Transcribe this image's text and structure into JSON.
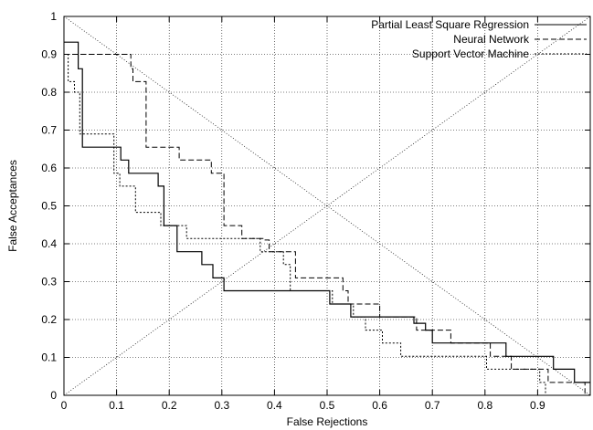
{
  "chart_data": {
    "type": "line",
    "title": "",
    "xlabel": "False Rejections",
    "ylabel": "False Acceptances",
    "xlim": [
      0,
      1
    ],
    "ylim": [
      0,
      1
    ],
    "grid": true,
    "legend_position": "top-right",
    "x_ticks": [
      "0",
      "0.1",
      "0.2",
      "0.3",
      "0.4",
      "0.5",
      "0.6",
      "0.7",
      "0.8",
      "0.9"
    ],
    "y_ticks": [
      "0",
      "0.1",
      "0.2",
      "0.3",
      "0.4",
      "0.5",
      "0.6",
      "0.7",
      "0.8",
      "0.9",
      "1"
    ],
    "series": [
      {
        "name": "Partial Least Square Regression",
        "style": "solid",
        "x": [
          0.0,
          0.027,
          0.027,
          0.035,
          0.035,
          0.108,
          0.108,
          0.123,
          0.123,
          0.144,
          0.144,
          0.179,
          0.179,
          0.19,
          0.19,
          0.215,
          0.215,
          0.234,
          0.234,
          0.262,
          0.262,
          0.283,
          0.283,
          0.304,
          0.304,
          0.505,
          0.505,
          0.545,
          0.545,
          0.568,
          0.568,
          0.665,
          0.665,
          0.687,
          0.687,
          0.7,
          0.7,
          0.84,
          0.84,
          0.93,
          0.93,
          0.97,
          0.97,
          1.0
        ],
        "y": [
          0.932,
          0.932,
          0.862,
          0.862,
          0.655,
          0.655,
          0.621,
          0.621,
          0.586,
          0.586,
          0.586,
          0.586,
          0.552,
          0.552,
          0.448,
          0.448,
          0.379,
          0.379,
          0.379,
          0.379,
          0.345,
          0.345,
          0.31,
          0.31,
          0.276,
          0.276,
          0.241,
          0.241,
          0.207,
          0.207,
          0.207,
          0.207,
          0.19,
          0.19,
          0.172,
          0.172,
          0.138,
          0.138,
          0.103,
          0.103,
          0.069,
          0.069,
          0.034,
          0.034
        ]
      },
      {
        "name": "Neural Network",
        "style": "dashed",
        "x": [
          0.0,
          0.127,
          0.127,
          0.131,
          0.131,
          0.156,
          0.156,
          0.219,
          0.219,
          0.28,
          0.28,
          0.304,
          0.304,
          0.338,
          0.338,
          0.354,
          0.354,
          0.379,
          0.379,
          0.39,
          0.39,
          0.44,
          0.44,
          0.45,
          0.45,
          0.53,
          0.53,
          0.54,
          0.54,
          0.6,
          0.6,
          0.67,
          0.67,
          0.735,
          0.735,
          0.81,
          0.81,
          0.85,
          0.85,
          0.92,
          0.92,
          0.99,
          0.99,
          1.0
        ],
        "y": [
          0.9,
          0.9,
          0.862,
          0.862,
          0.828,
          0.828,
          0.655,
          0.655,
          0.621,
          0.621,
          0.586,
          0.586,
          0.448,
          0.448,
          0.414,
          0.414,
          0.414,
          0.414,
          0.41,
          0.41,
          0.379,
          0.379,
          0.31,
          0.31,
          0.31,
          0.31,
          0.276,
          0.276,
          0.241,
          0.241,
          0.207,
          0.207,
          0.172,
          0.172,
          0.138,
          0.138,
          0.103,
          0.103,
          0.069,
          0.069,
          0.034,
          0.034,
          0.0,
          0.0
        ]
      },
      {
        "name": "Support Vector Machine",
        "style": "dotted",
        "x": [
          0.0,
          0.008,
          0.008,
          0.02,
          0.02,
          0.03,
          0.03,
          0.095,
          0.095,
          0.106,
          0.106,
          0.136,
          0.136,
          0.172,
          0.172,
          0.184,
          0.184,
          0.233,
          0.233,
          0.373,
          0.373,
          0.417,
          0.417,
          0.43,
          0.43,
          0.5,
          0.5,
          0.51,
          0.51,
          0.55,
          0.55,
          0.573,
          0.573,
          0.605,
          0.605,
          0.64,
          0.64,
          0.803,
          0.803,
          0.837,
          0.837,
          0.904,
          0.904,
          0.915,
          0.915,
          0.93
        ],
        "y": [
          0.9,
          0.9,
          0.828,
          0.828,
          0.8,
          0.8,
          0.69,
          0.69,
          0.586,
          0.586,
          0.552,
          0.552,
          0.483,
          0.483,
          0.483,
          0.483,
          0.448,
          0.448,
          0.414,
          0.414,
          0.379,
          0.379,
          0.345,
          0.345,
          0.276,
          0.276,
          0.276,
          0.276,
          0.241,
          0.241,
          0.207,
          0.207,
          0.172,
          0.172,
          0.138,
          0.138,
          0.103,
          0.103,
          0.069,
          0.069,
          0.069,
          0.069,
          0.034,
          0.034,
          0.0,
          0.0
        ]
      }
    ],
    "reference_lines": [
      {
        "x": [
          0,
          1
        ],
        "y": [
          1,
          0
        ],
        "style": "dotted"
      },
      {
        "x": [
          0,
          1
        ],
        "y": [
          0,
          1
        ],
        "style": "dotted"
      }
    ]
  }
}
